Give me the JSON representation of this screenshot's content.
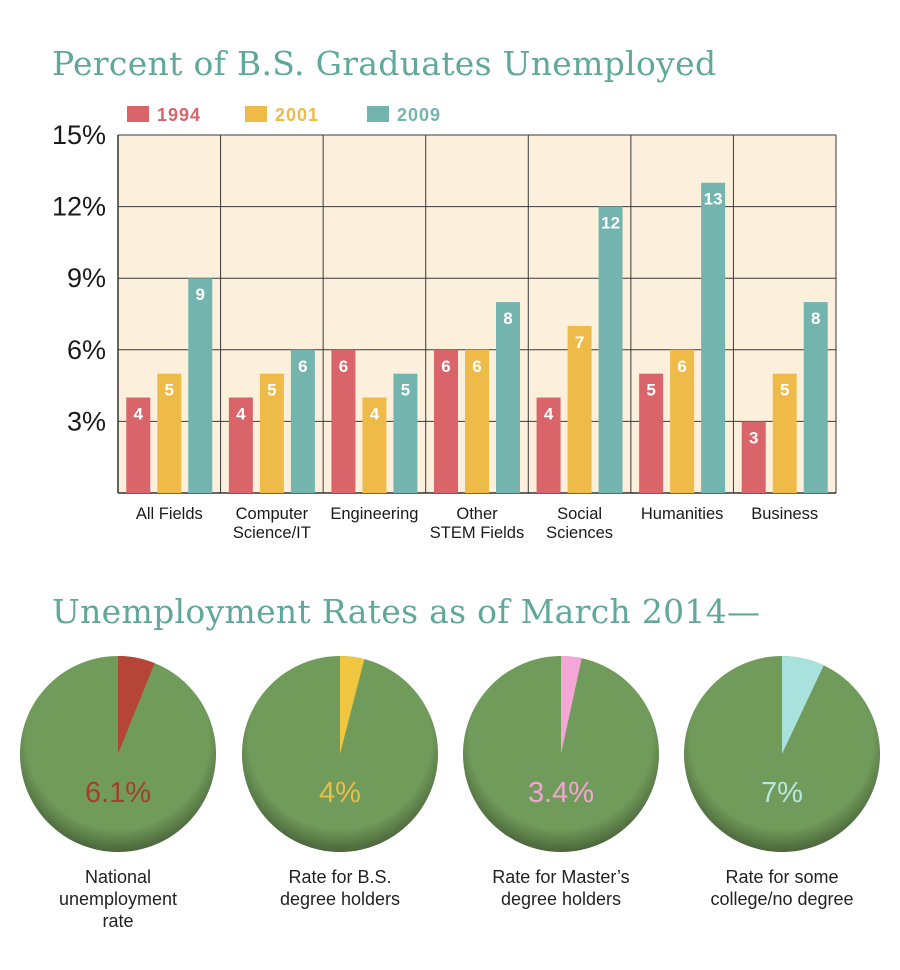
{
  "chart_data": [
    {
      "type": "bar",
      "title": "Percent of B.S. Graduates Unemployed",
      "categories": [
        [
          "All Fields"
        ],
        [
          "Computer",
          "Science/IT"
        ],
        [
          "Engineering"
        ],
        [
          "Other",
          "STEM Fields"
        ],
        [
          "Social",
          "Sciences"
        ],
        [
          "Humanities"
        ],
        [
          "Business"
        ]
      ],
      "series": [
        {
          "name": "1994",
          "color": "#d9646a",
          "values": [
            4,
            4,
            6,
            6,
            4,
            5,
            3
          ]
        },
        {
          "name": "2001",
          "color": "#efbb48",
          "values": [
            5,
            5,
            4,
            6,
            7,
            6,
            5
          ]
        },
        {
          "name": "2009",
          "color": "#74b4ae",
          "values": [
            9,
            6,
            5,
            8,
            12,
            13,
            8
          ]
        }
      ],
      "yticks": [
        "3%",
        "6%",
        "9%",
        "12%",
        "15%"
      ],
      "ylim": [
        0,
        15
      ],
      "grid": true,
      "legend": "top-left",
      "plot_background": "#fcf0dc"
    },
    {
      "type": "pie",
      "title": "Unemployment Rates as of March 2014—",
      "pies": [
        {
          "value": 6.1,
          "label_text": "6.1%",
          "caption": [
            "National",
            "unemployment",
            "rate"
          ],
          "slice_color": "#b54537",
          "text_color": "#a33f30"
        },
        {
          "value": 4,
          "label_text": "4%",
          "caption": [
            "Rate for B.S.",
            "degree holders"
          ],
          "slice_color": "#f0c640",
          "text_color": "#e8be46"
        },
        {
          "value": 3.4,
          "label_text": "3.4%",
          "caption": [
            "Rate for Master’s",
            "degree holders"
          ],
          "slice_color": "#f4a7d6",
          "text_color": "#f0a6d2"
        },
        {
          "value": 7,
          "label_text": "7%",
          "caption": [
            "Rate for some",
            "college/no degree"
          ],
          "slice_color": "#a9e2dc",
          "text_color": "#b8e6e0"
        }
      ],
      "rest_color": "#719b5a"
    }
  ]
}
